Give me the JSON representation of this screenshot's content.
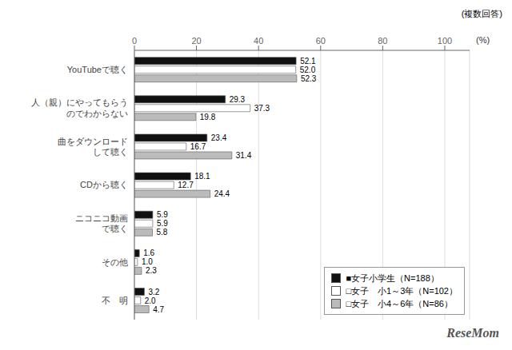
{
  "chart_data": {
    "type": "bar",
    "orientation": "horizontal",
    "xlabel": "(%)",
    "annotations": [
      "(複数回答)",
      "ReseMom"
    ],
    "categories": [
      "YouTubeで聴く",
      "人（親）にやってもらう\nのでわからない",
      "曲をダウンロード\nして聴く",
      "CDから聴く",
      "ニコニコ動画\nで聴く",
      "その他",
      "不　明"
    ],
    "series": [
      {
        "name": "■女子小学生（N=188）",
        "color": "#111111",
        "values": [
          52.1,
          29.3,
          23.4,
          18.1,
          5.9,
          1.6,
          3.2
        ],
        "value_labels": [
          "52.1",
          "29.3",
          "23.4",
          "18.1",
          "5.9",
          "1.6",
          "3.2"
        ]
      },
      {
        "name": "□女子　小1～3年（N=102）",
        "color": "#ffffff",
        "values": [
          52.0,
          37.3,
          16.7,
          12.7,
          5.9,
          1.0,
          2.0
        ],
        "value_labels": [
          "52.0",
          "37.3",
          "16.7",
          "12.7",
          "5.9",
          "1.0",
          "2.0"
        ]
      },
      {
        "name": "□女子　小4～6年（N=86）",
        "color": "#bbbbbb",
        "values": [
          52.3,
          19.8,
          31.4,
          24.4,
          5.8,
          2.3,
          4.7
        ],
        "value_labels": [
          "52.3",
          "19.8",
          "31.4",
          "24.4",
          "5.8",
          "2.3",
          "4.7"
        ]
      }
    ],
    "xlim": [
      0,
      108
    ],
    "xticks": [
      0,
      20,
      40,
      60,
      80,
      100
    ],
    "grid": true,
    "legend": "lower right",
    "data_labels": true
  }
}
